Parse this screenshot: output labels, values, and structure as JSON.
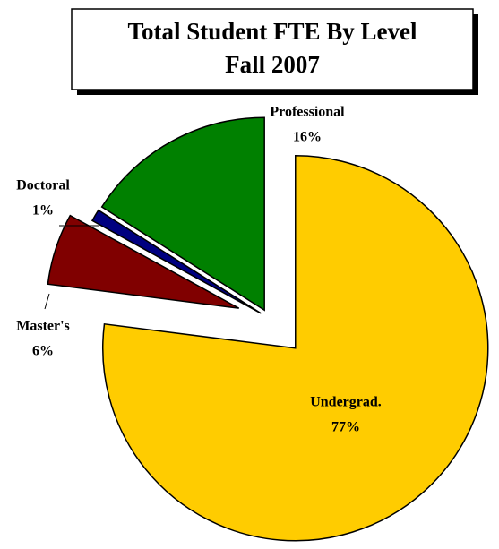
{
  "chart_data": {
    "type": "pie",
    "title": "Total Student FTE By Level",
    "subtitle": "Fall 2007",
    "categories": [
      "Undergrad.",
      "Master's",
      "Doctoral",
      "Professional"
    ],
    "values": [
      77,
      6,
      1,
      16
    ],
    "value_labels": [
      "77%",
      "6%",
      "1%",
      "16%"
    ],
    "colors": [
      "#ffcc00",
      "#800000",
      "#000080",
      "#008000"
    ]
  }
}
